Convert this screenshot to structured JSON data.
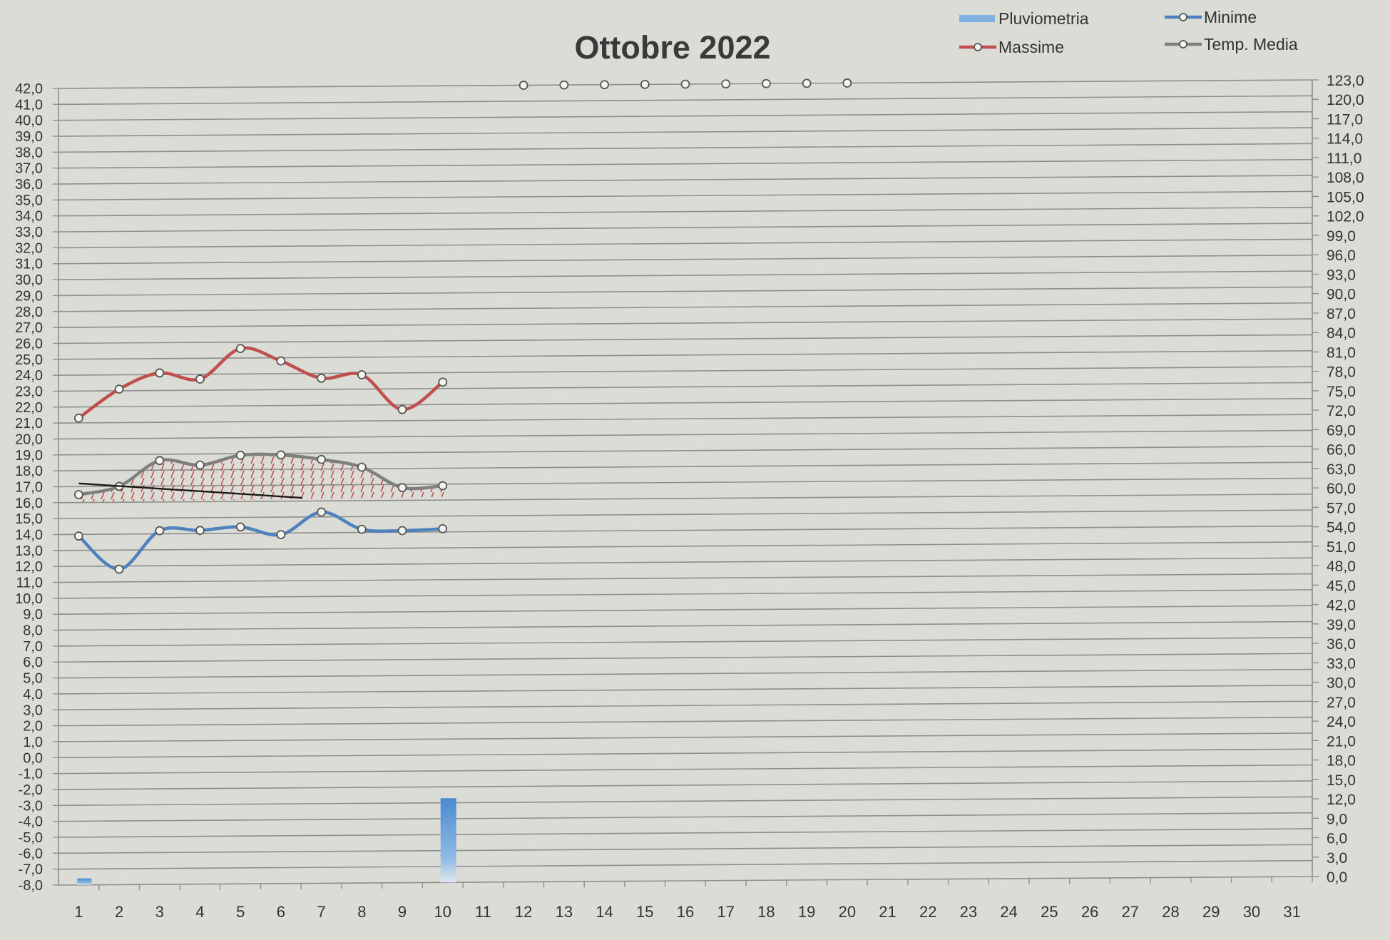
{
  "chart_data": {
    "type": "line",
    "title": "Ottobre 2022",
    "categories": [
      "1",
      "2",
      "3",
      "4",
      "5",
      "6",
      "7",
      "8",
      "9",
      "10",
      "11",
      "12",
      "13",
      "14",
      "15",
      "16",
      "17",
      "18",
      "19",
      "20",
      "21",
      "22",
      "23",
      "24",
      "25",
      "26",
      "27",
      "28",
      "29",
      "30",
      "31"
    ],
    "y_left": {
      "min": -8,
      "max": 42,
      "step": 1,
      "ticks": [
        "42,0",
        "41,0",
        "40,0",
        "39,0",
        "38,0",
        "37,0",
        "36,0",
        "35,0",
        "34,0",
        "33,0",
        "32,0",
        "31,0",
        "30,0",
        "29,0",
        "28,0",
        "27,0",
        "26,0",
        "25,0",
        "24,0",
        "23,0",
        "22,0",
        "21,0",
        "20,0",
        "19,0",
        "18,0",
        "17,0",
        "16,0",
        "15,0",
        "14,0",
        "13,0",
        "12,0",
        "11,0",
        "10,0",
        "9,0",
        "8,0",
        "7,0",
        "6,0",
        "5,0",
        "4,0",
        "3,0",
        "2,0",
        "1,0",
        "0,0",
        "-1,0",
        "-2,0",
        "-3,0",
        "-4,0",
        "-5,0",
        "-6,0",
        "-7,0",
        "-8,0"
      ]
    },
    "y_right": {
      "min": 0,
      "max": 123,
      "step": 3,
      "ticks": [
        "123,0",
        "120,0",
        "117,0",
        "114,0",
        "111,0",
        "108,0",
        "105,0",
        "102,0",
        "99,0",
        "96,0",
        "93,0",
        "90,0",
        "87,0",
        "84,0",
        "81,0",
        "78,0",
        "75,0",
        "72,0",
        "69,0",
        "66,0",
        "63,0",
        "60,0",
        "57,0",
        "54,0",
        "51,0",
        "48,0",
        "45,0",
        "42,0",
        "39,0",
        "36,0",
        "33,0",
        "30,0",
        "27,0",
        "24,0",
        "21,0",
        "18,0",
        "15,0",
        "12,0",
        "9,0",
        "6,0",
        "3,0",
        "0,0"
      ]
    },
    "legend": {
      "placement": "top-right"
    },
    "series": [
      {
        "name": "Massime",
        "axis": "left",
        "color": "#c0504d",
        "x": [
          1,
          2,
          3,
          4,
          5,
          6,
          7,
          8,
          9,
          10
        ],
        "values": [
          21.3,
          23.1,
          24.1,
          23.7,
          25.6,
          24.8,
          23.7,
          23.9,
          21.7,
          23.4
        ]
      },
      {
        "name": "Minime",
        "axis": "left",
        "color": "#4f81bd",
        "x": [
          1,
          2,
          3,
          4,
          5,
          6,
          7,
          8,
          9,
          10
        ],
        "values": [
          13.9,
          11.8,
          14.2,
          14.2,
          14.4,
          13.9,
          15.3,
          14.2,
          14.1,
          14.2
        ]
      },
      {
        "name": "Temp. Media",
        "axis": "left",
        "color": "#7f7f7f",
        "x": [
          1,
          2,
          3,
          4,
          5,
          6,
          7,
          8,
          9,
          10
        ],
        "values": [
          16.5,
          17.0,
          18.6,
          18.3,
          18.9,
          18.9,
          18.6,
          18.1,
          16.8,
          16.9
        ]
      },
      {
        "name": "Pluviometria",
        "axis": "right",
        "type": "bar",
        "color": "#5b9bd5",
        "x": [
          1,
          2,
          3,
          4,
          5,
          6,
          7,
          8,
          9,
          10
        ],
        "values": [
          1.0,
          0,
          0,
          0,
          0,
          0,
          0,
          0,
          0,
          13.0
        ]
      },
      {
        "axis": "left",
        "color": "#7f7f7f",
        "marker_only": true,
        "x": [
          12,
          13,
          14,
          15,
          16,
          17,
          18,
          19,
          20
        ],
        "values": [
          42.0,
          42.0,
          42.0,
          42.0,
          42.0,
          42.0,
          42.0,
          42.0,
          42.0
        ]
      }
    ],
    "trend_line": {
      "color": "#1a1a1a",
      "x": [
        1,
        6
      ],
      "values": [
        17.2,
        16.2
      ]
    },
    "hatched_area": {
      "color": "#c0504d",
      "x_from": 1,
      "x_to": 10,
      "baseline": 16.2
    }
  }
}
